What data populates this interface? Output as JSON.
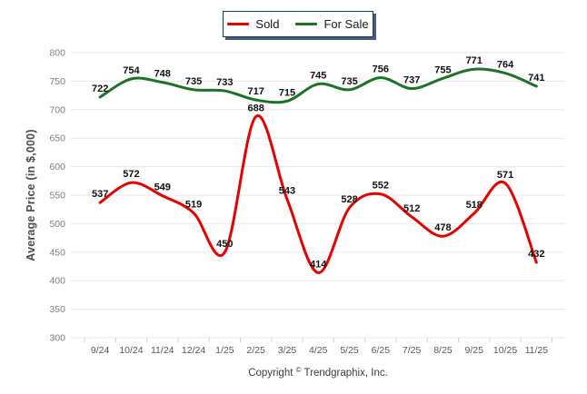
{
  "legend": {
    "items": [
      {
        "label": "Sold",
        "color": "#e60000"
      },
      {
        "label": "For Sale",
        "color": "#1d7324"
      }
    ]
  },
  "copyright": {
    "pre": "Copyright",
    "symbol": "©",
    "post": "Trendgraphix, Inc."
  },
  "colors": {
    "sold": "#e60000",
    "for_sale": "#1d7324",
    "grid": "#e8e8e8",
    "tick": "#cdd2d8",
    "y_tick_text": "#7f7f7f",
    "x_tick_text": "#525a62",
    "data_label": "#111111"
  },
  "chart_data": {
    "type": "line",
    "title": "",
    "xlabel": "",
    "ylabel": "Average Price (in $,000)",
    "categories": [
      "9/24",
      "10/24",
      "11/24",
      "12/24",
      "1/25",
      "2/25",
      "3/25",
      "4/25",
      "5/25",
      "6/25",
      "7/25",
      "8/25",
      "9/25",
      "10/25",
      "11/25"
    ],
    "series": [
      {
        "name": "Sold",
        "color": "#e60000",
        "values": [
          537,
          572,
          549,
          519,
          450,
          688,
          543,
          414,
          528,
          552,
          512,
          478,
          518,
          571,
          432
        ]
      },
      {
        "name": "For Sale",
        "color": "#1d7324",
        "values": [
          722,
          754,
          748,
          735,
          733,
          717,
          715,
          745,
          735,
          756,
          737,
          755,
          771,
          764,
          741
        ]
      }
    ],
    "ylim": [
      300,
      800
    ],
    "yticks": [
      300,
      350,
      400,
      450,
      500,
      550,
      600,
      650,
      700,
      750,
      800
    ],
    "grid": true,
    "smoothed": true,
    "legend_position": "top-center",
    "data_labels": true
  }
}
